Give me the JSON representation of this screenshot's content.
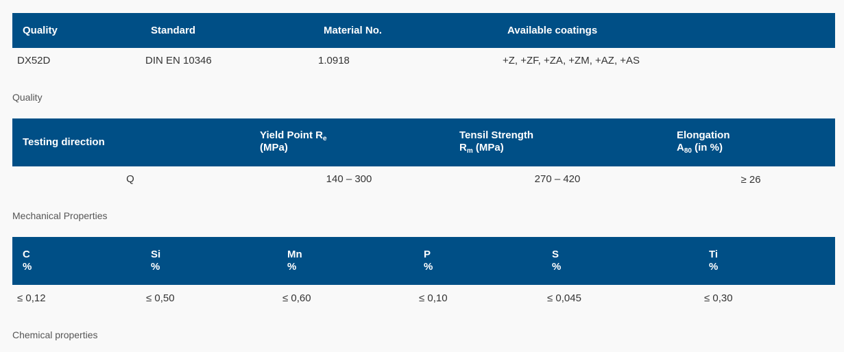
{
  "table_quality": {
    "caption": "Quality",
    "headers": [
      "Quality",
      "Standard",
      "Material No.",
      "Available coatings"
    ],
    "row": [
      "DX52D",
      "DIN EN 10346",
      "1.0918",
      "+Z, +ZF, +ZA, +ZM, +AZ, +AS"
    ]
  },
  "table_mechanical": {
    "caption": "Mechanical Properties",
    "headers": [
      {
        "line1": "Testing direction"
      },
      {
        "line1": "Yield Point R",
        "sub1": "e",
        "line2": "(MPa)"
      },
      {
        "line1": "Tensil Strength",
        "line2a": "R",
        "sub2": "m",
        "line2b": " (MPa)"
      },
      {
        "line1": "Elongation",
        "line2a": "A",
        "sub2": "80",
        "line2b": " (in %)"
      }
    ],
    "row": [
      "Q",
      "140 – 300",
      "270 – 420",
      "≥ 26"
    ]
  },
  "table_chemical": {
    "caption": "Chemical properties",
    "headers": [
      {
        "el": "C",
        "unit": "%"
      },
      {
        "el": "Si",
        "unit": "%"
      },
      {
        "el": "Mn",
        "unit": "%"
      },
      {
        "el": "P",
        "unit": "%"
      },
      {
        "el": "S",
        "unit": "%"
      },
      {
        "el": "Ti",
        "unit": "%"
      }
    ],
    "row": [
      "≤ 0,12",
      "≤ 0,50",
      "≤ 0,60",
      "≤ 0,10",
      "≤ 0,045",
      "≤ 0,30"
    ]
  },
  "colors": {
    "header_bg": "#004f86",
    "page_bg": "#f9f9f9"
  }
}
